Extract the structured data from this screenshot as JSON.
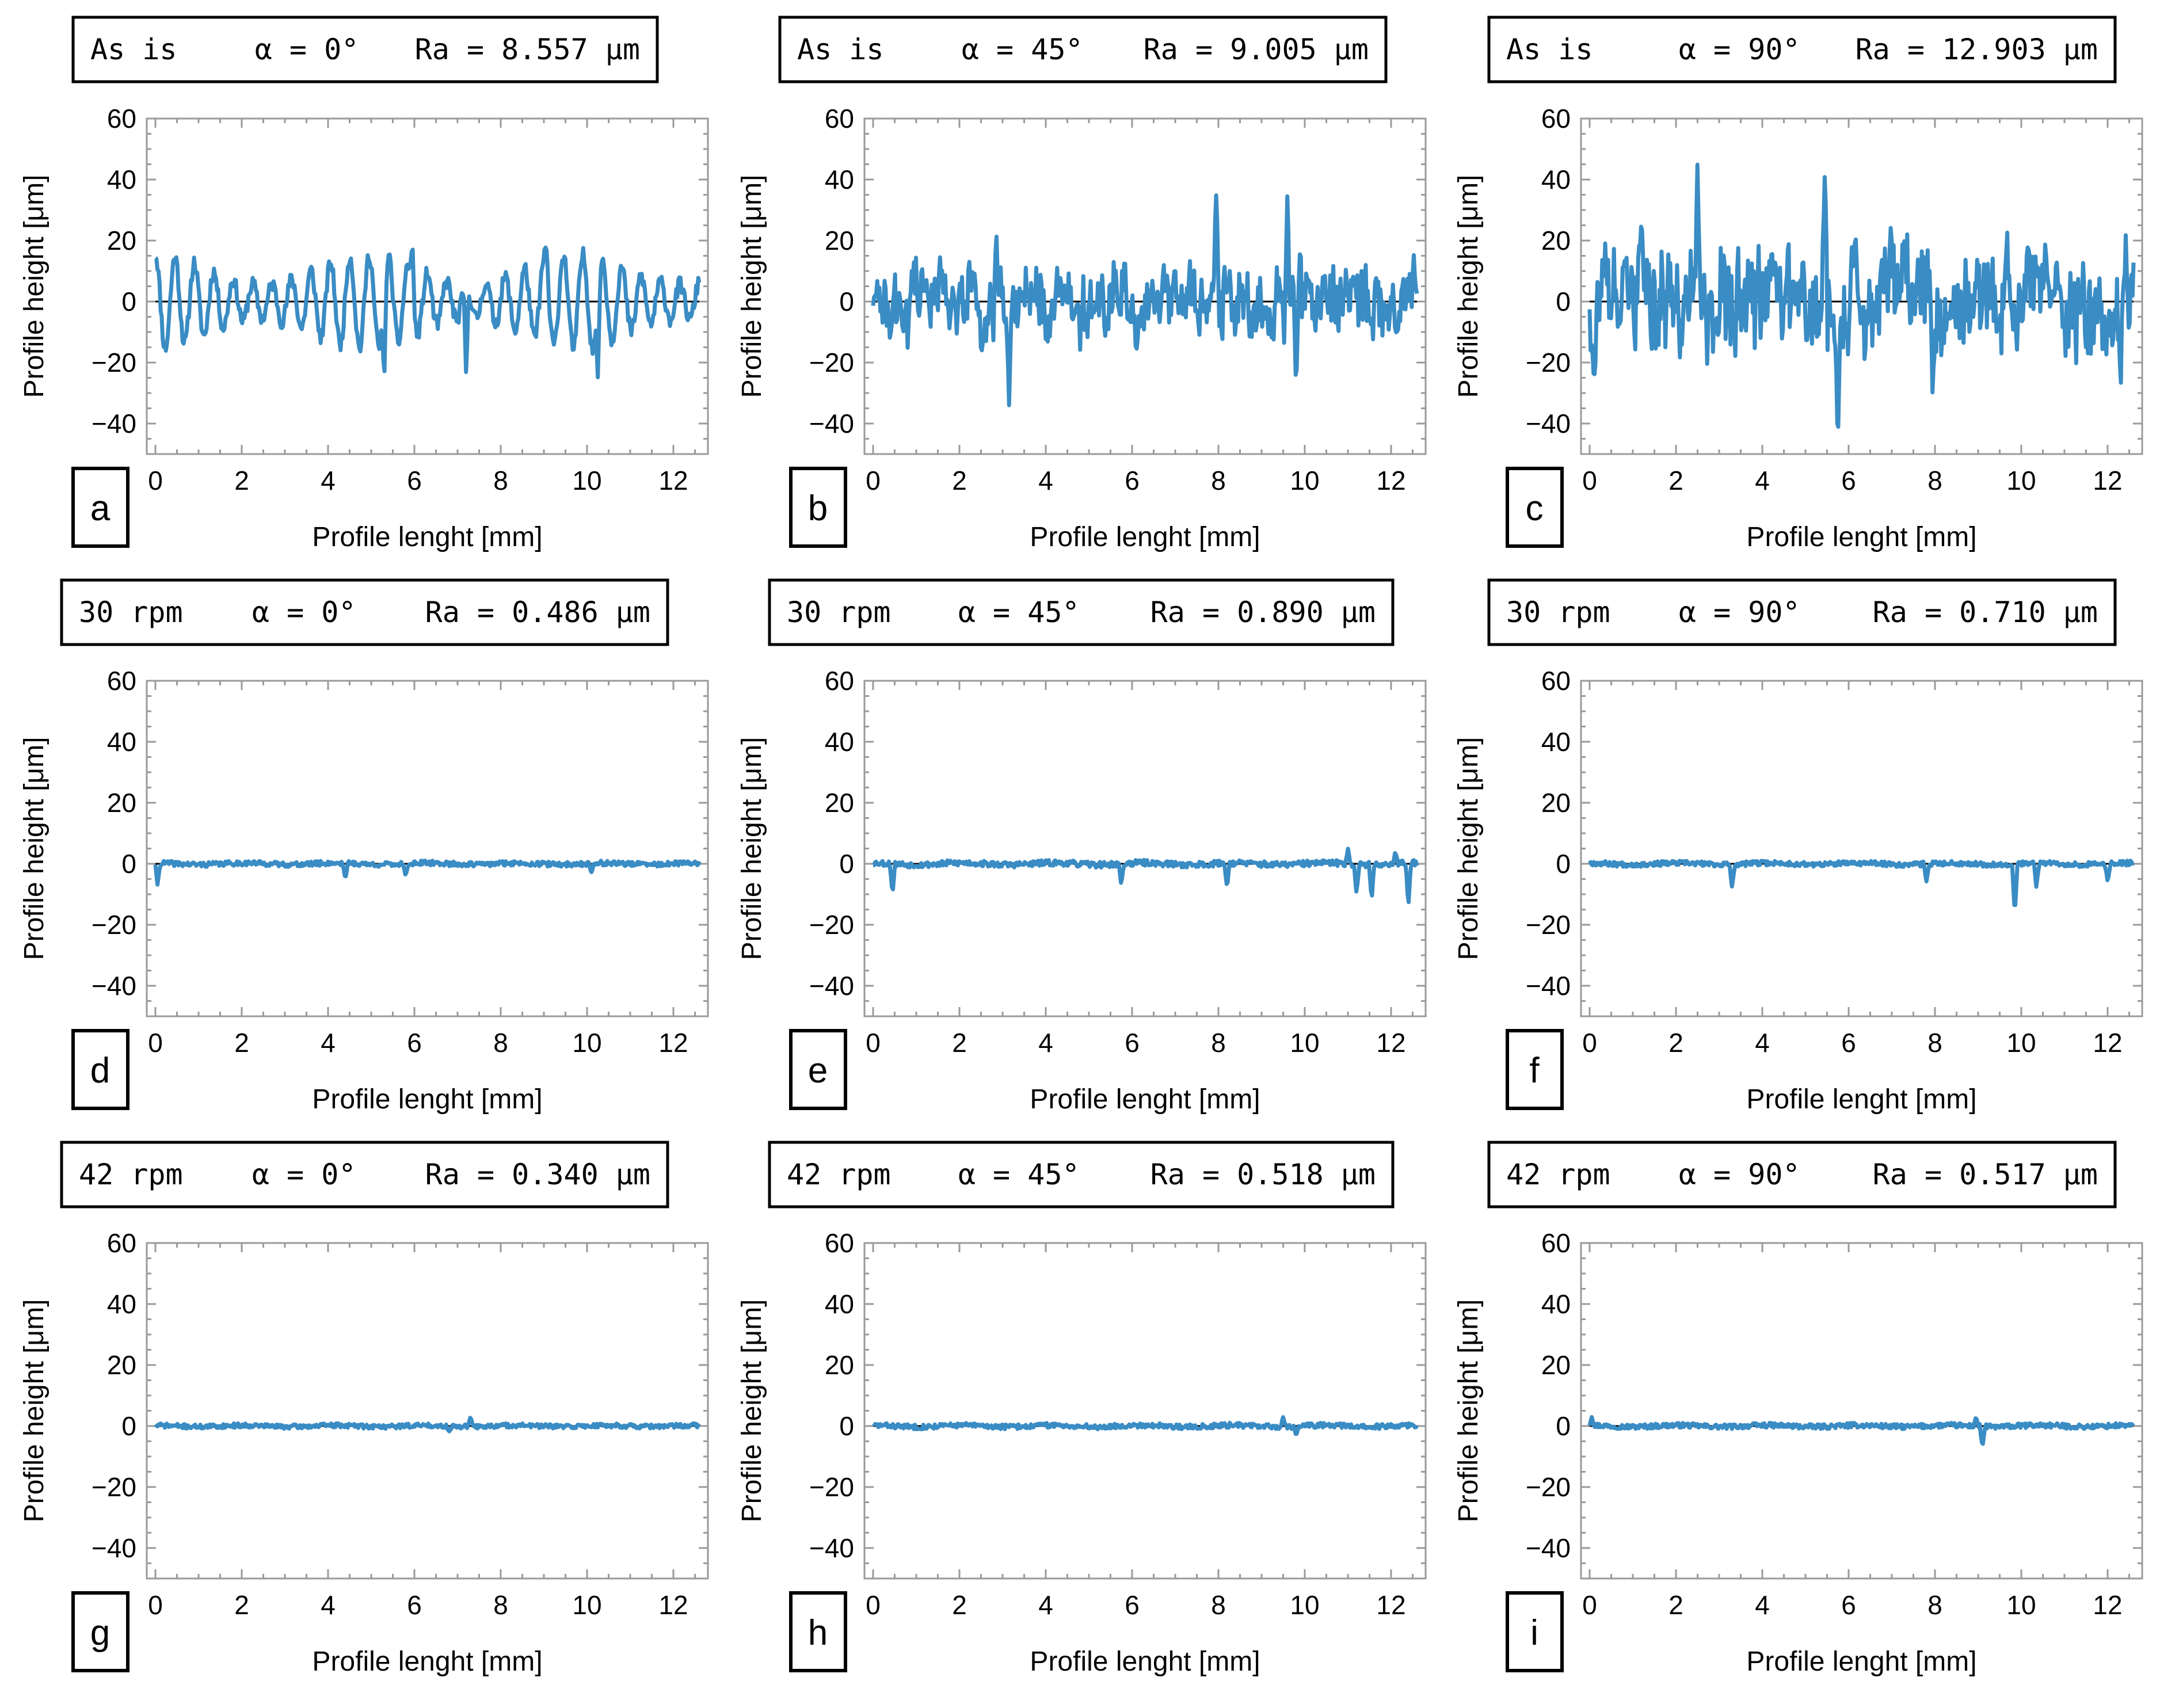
{
  "chart_data": [
    {
      "type": "line",
      "panel_label": "a",
      "title": {
        "condition": "As is",
        "angle": "α = 0°",
        "ra": "Ra = 8.557 μm"
      },
      "xlabel": "Profile lenght [mm]",
      "ylabel": "Profile height [μm]",
      "xlim": [
        -0.2,
        12.8
      ],
      "ylim": [
        -50,
        60
      ],
      "xticks": [
        0,
        2,
        4,
        6,
        8,
        10,
        12
      ],
      "yticks": [
        -40,
        -20,
        0,
        20,
        40,
        60
      ],
      "series_color": "#3a8cc4",
      "ra": 8.557,
      "profile_model": {
        "type": "periodic",
        "amplitude": 14,
        "wavelength": 0.45,
        "noise": 5,
        "seed": 11
      },
      "peaks": [
        [
          5.95,
          20
        ],
        [
          7.2,
          -25
        ],
        [
          9.05,
          19
        ],
        [
          10.25,
          -25
        ],
        [
          5.3,
          -26
        ]
      ],
      "n_points": 520
    },
    {
      "type": "line",
      "panel_label": "b",
      "title": {
        "condition": "As is",
        "angle": "α = 45°",
        "ra": "Ra = 9.005 μm"
      },
      "xlabel": "Profile lenght [mm]",
      "ylabel": "Profile height [μm]",
      "xlim": [
        -0.2,
        12.8
      ],
      "ylim": [
        -50,
        60
      ],
      "xticks": [
        0,
        2,
        4,
        6,
        8,
        10,
        12
      ],
      "yticks": [
        -40,
        -20,
        0,
        20,
        40,
        60
      ],
      "series_color": "#3a8cc4",
      "ra": 9.005,
      "profile_model": {
        "type": "random",
        "amplitude": 10,
        "wavelength": 0.3,
        "noise": 7,
        "seed": 23
      },
      "peaks": [
        [
          3.15,
          -34
        ],
        [
          7.95,
          36
        ],
        [
          9.6,
          37
        ],
        [
          9.8,
          -28
        ],
        [
          2.85,
          26
        ],
        [
          0.4,
          -13
        ]
      ],
      "n_points": 520
    },
    {
      "type": "line",
      "panel_label": "c",
      "title": {
        "condition": "As is",
        "angle": "α = 90°",
        "ra": "Ra = 12.903 μm"
      },
      "xlabel": "Profile lenght [mm]",
      "ylabel": "Profile height [μm]",
      "xlim": [
        -0.2,
        12.8
      ],
      "ylim": [
        -50,
        60
      ],
      "xticks": [
        0,
        2,
        4,
        6,
        8,
        10,
        12
      ],
      "yticks": [
        -40,
        -20,
        0,
        20,
        40,
        60
      ],
      "series_color": "#3a8cc4",
      "ra": 12.903,
      "profile_model": {
        "type": "random",
        "amplitude": 14,
        "wavelength": 0.2,
        "noise": 10,
        "seed": 37
      },
      "peaks": [
        [
          2.5,
          47
        ],
        [
          5.45,
          43
        ],
        [
          5.75,
          -46
        ],
        [
          7.95,
          -35
        ],
        [
          0.1,
          -29
        ],
        [
          1.2,
          30
        ],
        [
          12.3,
          -31
        ]
      ],
      "n_points": 560
    },
    {
      "type": "line",
      "panel_label": "d",
      "title": {
        "condition": "30 rpm",
        "angle": "α = 0°",
        "ra": "Ra = 0.486 μm"
      },
      "xlabel": "Profile lenght [mm]",
      "ylabel": "Profile height [μm]",
      "xlim": [
        -0.2,
        12.8
      ],
      "ylim": [
        -50,
        60
      ],
      "xticks": [
        0,
        2,
        4,
        6,
        8,
        10,
        12
      ],
      "yticks": [
        -40,
        -20,
        0,
        20,
        40,
        60
      ],
      "series_color": "#3a8cc4",
      "ra": 0.486,
      "profile_model": {
        "type": "flat",
        "amplitude": 0.8,
        "wavelength": 0.1,
        "noise": 1.0,
        "seed": 41
      },
      "peaks": [
        [
          0.05,
          -7
        ],
        [
          4.4,
          -5
        ],
        [
          5.8,
          -4
        ],
        [
          10.1,
          -3
        ]
      ],
      "n_points": 520
    },
    {
      "type": "line",
      "panel_label": "e",
      "title": {
        "condition": "30 rpm",
        "angle": "α = 45°",
        "ra": "Ra = 0.890 μm"
      },
      "xlabel": "Profile lenght [mm]",
      "ylabel": "Profile height [μm]",
      "xlim": [
        -0.2,
        12.8
      ],
      "ylim": [
        -50,
        60
      ],
      "xticks": [
        0,
        2,
        4,
        6,
        8,
        10,
        12
      ],
      "yticks": [
        -40,
        -20,
        0,
        20,
        40,
        60
      ],
      "series_color": "#3a8cc4",
      "ra": 0.89,
      "profile_model": {
        "type": "flat",
        "amplitude": 1.0,
        "wavelength": 0.1,
        "noise": 1.2,
        "seed": 53
      },
      "peaks": [
        [
          0.45,
          -10
        ],
        [
          5.75,
          -7
        ],
        [
          8.2,
          -8
        ],
        [
          11.2,
          -10
        ],
        [
          11.55,
          -12
        ],
        [
          12.4,
          -14
        ],
        [
          11.0,
          5
        ],
        [
          12.1,
          4
        ]
      ],
      "n_points": 520
    },
    {
      "type": "line",
      "panel_label": "f",
      "title": {
        "condition": "30 rpm",
        "angle": "α = 90°",
        "ra": "Ra = 0.710 μm"
      },
      "xlabel": "Profile lenght [mm]",
      "ylabel": "Profile height [μm]",
      "xlim": [
        -0.2,
        12.8
      ],
      "ylim": [
        -50,
        60
      ],
      "xticks": [
        0,
        2,
        4,
        6,
        8,
        10,
        12
      ],
      "yticks": [
        -40,
        -20,
        0,
        20,
        40,
        60
      ],
      "series_color": "#3a8cc4",
      "ra": 0.71,
      "profile_model": {
        "type": "flat",
        "amplitude": 0.8,
        "wavelength": 0.1,
        "noise": 1.0,
        "seed": 67
      },
      "peaks": [
        [
          3.3,
          -8
        ],
        [
          7.8,
          -6
        ],
        [
          9.85,
          -17
        ],
        [
          10.35,
          -8
        ],
        [
          12.0,
          -6
        ]
      ],
      "n_points": 520
    },
    {
      "type": "line",
      "panel_label": "g",
      "title": {
        "condition": "42 rpm",
        "angle": "α = 0°",
        "ra": "Ra = 0.340 μm"
      },
      "xlabel": "Profile lenght [mm]",
      "ylabel": "Profile height [μm]",
      "xlim": [
        -0.2,
        12.8
      ],
      "ylim": [
        -50,
        60
      ],
      "xticks": [
        0,
        2,
        4,
        6,
        8,
        10,
        12
      ],
      "yticks": [
        -40,
        -20,
        0,
        20,
        40,
        60
      ],
      "series_color": "#3a8cc4",
      "ra": 0.34,
      "profile_model": {
        "type": "flat",
        "amplitude": 0.7,
        "wavelength": 0.1,
        "noise": 0.9,
        "seed": 71
      },
      "peaks": [
        [
          7.3,
          3
        ],
        [
          6.8,
          -2
        ]
      ],
      "n_points": 520
    },
    {
      "type": "line",
      "panel_label": "h",
      "title": {
        "condition": "42 rpm",
        "angle": "α = 45°",
        "ra": "Ra = 0.518 μm"
      },
      "xlabel": "Profile lenght [mm]",
      "ylabel": "Profile height [μm]",
      "xlim": [
        -0.2,
        12.8
      ],
      "ylim": [
        -50,
        60
      ],
      "xticks": [
        0,
        2,
        4,
        6,
        8,
        10,
        12
      ],
      "yticks": [
        -40,
        -20,
        0,
        20,
        40,
        60
      ],
      "series_color": "#3a8cc4",
      "ra": 0.518,
      "profile_model": {
        "type": "flat",
        "amplitude": 0.9,
        "wavelength": 0.1,
        "noise": 1.0,
        "seed": 83
      },
      "peaks": [
        [
          9.5,
          3
        ],
        [
          9.8,
          -3
        ]
      ],
      "n_points": 520
    },
    {
      "type": "line",
      "panel_label": "i",
      "title": {
        "condition": "42 rpm",
        "angle": "α = 90°",
        "ra": "Ra = 0.517 μm"
      },
      "xlabel": "Profile lenght [mm]",
      "ylabel": "Profile height [μm]",
      "xlim": [
        -0.2,
        12.8
      ],
      "ylim": [
        -50,
        60
      ],
      "xticks": [
        0,
        2,
        4,
        6,
        8,
        10,
        12
      ],
      "yticks": [
        -40,
        -20,
        0,
        20,
        40,
        60
      ],
      "series_color": "#3a8cc4",
      "ra": 0.517,
      "profile_model": {
        "type": "flat",
        "amplitude": 0.8,
        "wavelength": 0.1,
        "noise": 1.0,
        "seed": 97
      },
      "peaks": [
        [
          9.1,
          -7
        ],
        [
          8.95,
          3
        ],
        [
          0.05,
          3
        ]
      ],
      "n_points": 520
    }
  ]
}
